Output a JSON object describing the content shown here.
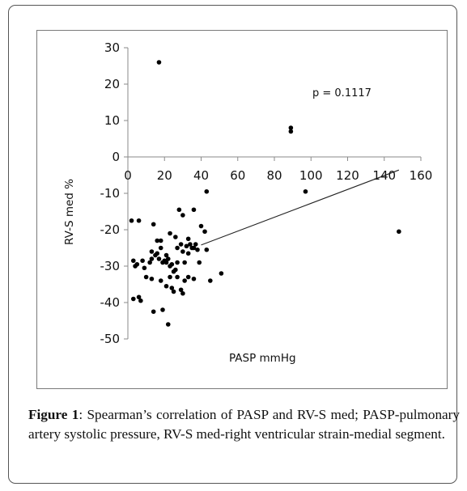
{
  "chart_data": {
    "type": "scatter",
    "title": "",
    "xlabel": "PASP mmHg",
    "ylabel": "RV-S med %",
    "xlim": [
      0,
      160
    ],
    "ylim": [
      -50,
      30
    ],
    "x_ticks": [
      "0",
      "20",
      "40",
      "60",
      "80",
      "100",
      "120",
      "140",
      "160"
    ],
    "y_ticks": [
      "30",
      "20",
      "10",
      "0",
      "-10",
      "-20",
      "-30",
      "-40",
      "-50"
    ],
    "x_tick_values": [
      0,
      20,
      40,
      60,
      80,
      100,
      120,
      140,
      160
    ],
    "y_tick_values": [
      30,
      20,
      10,
      0,
      -10,
      -20,
      -30,
      -40,
      -50
    ],
    "grid": false,
    "annotation": "p = 0.1117",
    "series": [
      {
        "points": [
          [
            17,
            26
          ],
          [
            89,
            8
          ],
          [
            89,
            7
          ],
          [
            43,
            -9.5
          ],
          [
            97,
            -9.5
          ],
          [
            148,
            -20.5
          ],
          [
            2,
            -17.5
          ],
          [
            6,
            -17.5
          ],
          [
            14,
            -18.5
          ],
          [
            16,
            -23
          ],
          [
            18,
            -23
          ],
          [
            13,
            -26
          ],
          [
            15,
            -27
          ],
          [
            18,
            -25
          ],
          [
            21,
            -27
          ],
          [
            23,
            -21
          ],
          [
            26,
            -22
          ],
          [
            28,
            -14.5
          ],
          [
            30,
            -16
          ],
          [
            33,
            -22.5
          ],
          [
            34,
            -24
          ],
          [
            36,
            -14.5
          ],
          [
            37,
            -24
          ],
          [
            40,
            -19
          ],
          [
            42,
            -20.5
          ],
          [
            43,
            -25.5
          ],
          [
            45,
            -34
          ],
          [
            51,
            -32
          ],
          [
            3,
            -28.5
          ],
          [
            4,
            -30
          ],
          [
            5,
            -29.5
          ],
          [
            8,
            -28.5
          ],
          [
            9,
            -30.5
          ],
          [
            12,
            -29
          ],
          [
            13,
            -28
          ],
          [
            16,
            -26.5
          ],
          [
            17,
            -28
          ],
          [
            19,
            -29
          ],
          [
            20,
            -28.5
          ],
          [
            21,
            -29
          ],
          [
            22,
            -28
          ],
          [
            23,
            -30
          ],
          [
            24,
            -29.5
          ],
          [
            25,
            -31.5
          ],
          [
            26,
            -31
          ],
          [
            27,
            -29
          ],
          [
            27,
            -25
          ],
          [
            29,
            -24
          ],
          [
            30,
            -26
          ],
          [
            31,
            -29
          ],
          [
            32,
            -24.5
          ],
          [
            33,
            -26.5
          ],
          [
            35,
            -25
          ],
          [
            36,
            -25
          ],
          [
            38,
            -25.5
          ],
          [
            39,
            -29
          ],
          [
            10,
            -33
          ],
          [
            13,
            -33.5
          ],
          [
            18,
            -34
          ],
          [
            21,
            -35.5
          ],
          [
            23,
            -33
          ],
          [
            25,
            -37
          ],
          [
            27,
            -33
          ],
          [
            29,
            -36.5
          ],
          [
            30,
            -37.5
          ],
          [
            31,
            -34
          ],
          [
            33,
            -33
          ],
          [
            36,
            -33.5
          ],
          [
            3,
            -39
          ],
          [
            6,
            -38.5
          ],
          [
            7,
            -39.5
          ],
          [
            14,
            -42.5
          ],
          [
            19,
            -42
          ],
          [
            22,
            -46
          ],
          [
            24,
            -36
          ]
        ]
      }
    ],
    "trendline": {
      "x": [
        40,
        148
      ],
      "y": [
        -24.2,
        -3.6
      ]
    }
  },
  "caption": {
    "label": "Figure 1",
    "text": ": Spearman’s correlation of PASP and RV-S med; PASP-pulmonary artery systolic pressure, RV-S med-right ventricular strain-medial segment."
  }
}
